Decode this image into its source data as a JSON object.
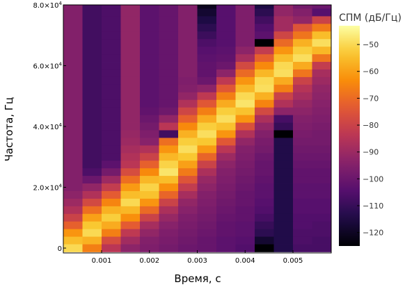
{
  "chart_data": {
    "type": "heatmap",
    "title": "",
    "xlabel": "Время, с",
    "ylabel": "Частота, Гц",
    "colorbar_label": "СПМ (дБ/Гц)",
    "colormap": "inferno",
    "clim": [
      -125,
      -43
    ],
    "colorbar_ticks": [
      -50,
      -60,
      -70,
      -80,
      -90,
      -100,
      -110,
      -120
    ],
    "colorbar_tick_labels": [
      "−50",
      "−60",
      "−70",
      "−80",
      "−90",
      "−100",
      "−110",
      "−120"
    ],
    "xlim": [
      0.0002,
      0.0058
    ],
    "ylim": [
      -1600,
      80000
    ],
    "x_ticks": [
      0.001,
      0.002,
      0.003,
      0.004,
      0.005
    ],
    "x_tick_labels": [
      "0.001",
      "0.002",
      "0.003",
      "0.004",
      "0.005"
    ],
    "y_ticks": [
      0,
      20000,
      40000,
      60000,
      80000
    ],
    "y_tick_labels": [
      {
        "mantissa": "0",
        "exp": ""
      },
      {
        "mantissa": "2.0×10",
        "exp": "4"
      },
      {
        "mantissa": "4.0×10",
        "exp": "4"
      },
      {
        "mantissa": "6.0×10",
        "exp": "4"
      },
      {
        "mantissa": "8.0×10",
        "exp": "4"
      }
    ],
    "grid": false,
    "time_bins": [
      0.0004,
      0.0008,
      0.0012,
      0.0016,
      0.002,
      0.0024,
      0.0028,
      0.0032,
      0.0036,
      0.004,
      0.0044,
      0.0048,
      0.0052,
      0.0056
    ],
    "freq_bins_start": 0,
    "freq_bins_step": 2500,
    "rows_from_top": [
      [
        -95,
        -108,
        -106,
        -92,
        -103,
        -101,
        -95,
        -124,
        -104,
        -96,
        -125,
        -92,
        -98,
        -98
      ],
      [
        -95,
        -108,
        -106,
        -92,
        -103,
        -101,
        -95,
        -121,
        -104,
        -96,
        -115,
        -92,
        -98,
        -100
      ],
      [
        -95,
        -108,
        -106,
        -92,
        -103,
        -101,
        -95,
        -118,
        -104,
        -96,
        -112,
        -92,
        -95,
        -104
      ],
      [
        -95,
        -108,
        -106,
        -92,
        -103,
        -101,
        -95,
        -115,
        -104,
        -96,
        -108,
        -89,
        -92,
        -80
      ],
      [
        -95,
        -108,
        -106,
        -92,
        -103,
        -101,
        -95,
        -112,
        -104,
        -96,
        -105,
        -89,
        -75,
        -67
      ],
      [
        -95,
        -108,
        -106,
        -92,
        -103,
        -101,
        -95,
        -109,
        -104,
        -96,
        -103,
        -79,
        -68,
        -55
      ],
      [
        -95,
        -108,
        -106,
        -92,
        -103,
        -101,
        -95,
        -106,
        -104,
        -96,
        -125,
        -70,
        -57,
        -49
      ],
      [
        -95,
        -108,
        -106,
        -92,
        -103,
        -101,
        -95,
        -104,
        -103,
        -93,
        -82,
        -62,
        -52,
        -56
      ],
      [
        -95,
        -108,
        -106,
        -92,
        -103,
        -101,
        -95,
        -103,
        -102,
        -88,
        -72,
        -55,
        -49,
        -68
      ],
      [
        -95,
        -108,
        -106,
        -92,
        -103,
        -101,
        -95,
        -102,
        -100,
        -78,
        -64,
        -50,
        -58,
        -82
      ],
      [
        -95,
        -108,
        -106,
        -92,
        -103,
        -101,
        -95,
        -102,
        -93,
        -70,
        -56,
        -49,
        -68,
        -88
      ],
      [
        -95,
        -108,
        -106,
        -92,
        -103,
        -101,
        -96,
        -100,
        -83,
        -62,
        -50,
        -58,
        -80,
        -90
      ],
      [
        -95,
        -108,
        -106,
        -92,
        -103,
        -101,
        -95,
        -93,
        -74,
        -56,
        -49,
        -66,
        -85,
        -92
      ],
      [
        -95,
        -108,
        -106,
        -92,
        -103,
        -101,
        -92,
        -83,
        -66,
        -50,
        -57,
        -80,
        -88,
        -93
      ],
      [
        -95,
        -108,
        -106,
        -92,
        -103,
        -101,
        -86,
        -74,
        -58,
        -48,
        -65,
        -86,
        -91,
        -94
      ],
      [
        -95,
        -108,
        -106,
        -92,
        -102,
        -99,
        -79,
        -66,
        -52,
        -54,
        -78,
        -93,
        -93,
        -95
      ],
      [
        -95,
        -108,
        -106,
        -92,
        -100,
        -92,
        -72,
        -58,
        -49,
        -62,
        -87,
        -107,
        -95,
        -96
      ],
      [
        -95,
        -108,
        -106,
        -92,
        -98,
        -84,
        -64,
        -52,
        -54,
        -76,
        -92,
        -110,
        -96,
        -97
      ],
      [
        -95,
        -108,
        -106,
        -91,
        -96,
        -108,
        -57,
        -49,
        -62,
        -86,
        -95,
        -125,
        -97,
        -98
      ],
      [
        -95,
        -108,
        -106,
        -90,
        -94,
        -69,
        -52,
        -53,
        -74,
        -92,
        -97,
        -114,
        -98,
        -98
      ],
      [
        -95,
        -108,
        -106,
        -88,
        -86,
        -62,
        -49,
        -61,
        -84,
        -95,
        -98,
        -114,
        -99,
        -99
      ],
      [
        -95,
        -108,
        -106,
        -86,
        -80,
        -56,
        -53,
        -71,
        -90,
        -96,
        -100,
        -114,
        -100,
        -100
      ],
      [
        -95,
        -108,
        -103,
        -84,
        -72,
        -51,
        -60,
        -80,
        -93,
        -97,
        -101,
        -114,
        -101,
        -101
      ],
      [
        -95,
        -106,
        -98,
        -77,
        -64,
        -48,
        -67,
        -87,
        -95,
        -98,
        -101,
        -114,
        -102,
        -102
      ],
      [
        -95,
        -100,
        -90,
        -69,
        -56,
        -55,
        -75,
        -91,
        -96,
        -99,
        -102,
        -114,
        -102,
        -102
      ],
      [
        -95,
        -92,
        -82,
        -61,
        -51,
        -63,
        -82,
        -93,
        -97,
        -100,
        -103,
        -114,
        -103,
        -103
      ],
      [
        -93,
        -86,
        -73,
        -55,
        -54,
        -71,
        -88,
        -95,
        -98,
        -101,
        -103,
        -114,
        -103,
        -103
      ],
      [
        -90,
        -78,
        -65,
        -50,
        -62,
        -80,
        -92,
        -96,
        -99,
        -101,
        -104,
        -114,
        -104,
        -104
      ],
      [
        -86,
        -69,
        -57,
        -56,
        -70,
        -87,
        -94,
        -97,
        -100,
        -102,
        -105,
        -114,
        -104,
        -104
      ],
      [
        -80,
        -60,
        -52,
        -63,
        -80,
        -91,
        -96,
        -98,
        -101,
        -102,
        -107,
        -114,
        -105,
        -105
      ],
      [
        -72,
        -53,
        -58,
        -73,
        -88,
        -94,
        -97,
        -99,
        -102,
        -103,
        -110,
        -114,
        -105,
        -106
      ],
      [
        -62,
        -50,
        -66,
        -83,
        -92,
        -96,
        -98,
        -100,
        -102,
        -103,
        -112,
        -114,
        -106,
        -106
      ],
      [
        -55,
        -57,
        -77,
        -89,
        -95,
        -97,
        -99,
        -101,
        -103,
        -104,
        -118,
        -114,
        -106,
        -107
      ],
      [
        -50,
        -66,
        -84,
        -93,
        -96,
        -98,
        -100,
        -101,
        -103,
        -105,
        -125,
        -114,
        -107,
        -107
      ]
    ]
  }
}
